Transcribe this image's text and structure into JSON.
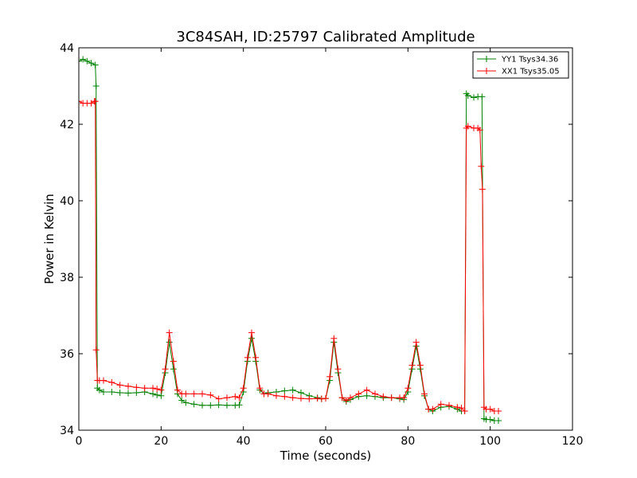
{
  "chart_data": {
    "type": "line",
    "title": "3C84SAH, ID:25797 Calibrated Amplitude",
    "xlabel": "Time (seconds)",
    "ylabel": "Power in Kelvin",
    "xlim": [
      0,
      120
    ],
    "ylim": [
      34,
      44
    ],
    "xticks": [
      0,
      20,
      40,
      60,
      80,
      100,
      120
    ],
    "yticks": [
      34,
      36,
      38,
      40,
      42,
      44
    ],
    "grid": false,
    "legend": "top-right",
    "marker": "+",
    "series": [
      {
        "name": "YY1 Tsys34.36",
        "color": "#008000",
        "x": [
          0,
          1,
          2,
          3,
          4,
          4.2,
          4.5,
          5,
          6,
          8,
          10,
          12,
          14,
          16,
          18,
          19,
          20,
          21,
          22,
          23,
          24,
          25,
          26,
          28,
          30,
          32,
          34,
          36,
          38,
          39,
          40,
          41,
          42,
          43,
          44,
          45,
          46,
          48,
          50,
          52,
          54,
          56,
          58,
          59,
          60,
          61,
          62,
          63,
          64,
          65,
          66,
          68,
          70,
          72,
          74,
          76,
          78,
          79,
          80,
          81,
          82,
          83,
          84,
          85,
          86,
          88,
          90,
          92,
          93,
          93.8,
          94.2,
          94.6,
          96,
          97,
          98,
          98.5,
          99,
          100,
          101,
          102
        ],
        "values": [
          43.65,
          43.7,
          43.65,
          43.6,
          43.55,
          43.0,
          35.1,
          35.05,
          35.0,
          35.0,
          34.98,
          34.97,
          34.98,
          35.0,
          34.95,
          34.92,
          34.9,
          35.5,
          36.3,
          35.6,
          34.95,
          34.78,
          34.72,
          34.68,
          34.65,
          34.65,
          34.66,
          34.65,
          34.65,
          34.66,
          35.0,
          35.8,
          36.4,
          35.8,
          35.05,
          34.95,
          34.98,
          35.0,
          35.03,
          35.05,
          34.98,
          34.9,
          34.85,
          34.82,
          34.83,
          35.3,
          36.3,
          35.5,
          34.85,
          34.75,
          34.8,
          34.88,
          34.9,
          34.88,
          34.85,
          34.85,
          34.82,
          34.8,
          35.0,
          35.6,
          36.2,
          35.6,
          34.9,
          34.55,
          34.5,
          34.6,
          34.62,
          34.55,
          34.5,
          34.5,
          42.8,
          42.75,
          42.7,
          42.72,
          42.72,
          34.3,
          34.28,
          34.28,
          34.25,
          34.25
        ]
      },
      {
        "name": "XX1 Tsys35.05",
        "color": "#ff0000",
        "x": [
          0,
          1,
          2,
          3,
          3.8,
          4.0,
          4.2,
          4.5,
          5,
          6,
          8,
          10,
          12,
          14,
          16,
          18,
          19,
          20,
          21,
          22,
          23,
          24,
          25,
          26,
          28,
          30,
          32,
          34,
          36,
          38,
          39,
          40,
          41,
          42,
          43,
          44,
          45,
          46,
          48,
          50,
          52,
          54,
          56,
          58,
          59,
          60,
          61,
          62,
          63,
          64,
          65,
          66,
          68,
          70,
          72,
          74,
          76,
          78,
          79,
          80,
          81,
          82,
          83,
          84,
          85,
          86,
          88,
          90,
          92,
          93,
          93.8,
          94.2,
          94.6,
          96,
          97,
          97.5,
          97.8,
          98.1,
          98.5,
          99,
          100,
          101,
          102
        ],
        "values": [
          42.6,
          42.55,
          42.55,
          42.55,
          42.6,
          42.6,
          36.1,
          35.3,
          35.3,
          35.3,
          35.25,
          35.18,
          35.15,
          35.12,
          35.1,
          35.1,
          35.08,
          35.05,
          35.6,
          36.55,
          35.8,
          35.05,
          34.95,
          34.95,
          34.95,
          34.95,
          34.92,
          34.82,
          34.85,
          34.88,
          34.85,
          35.1,
          35.9,
          36.55,
          35.9,
          35.1,
          34.95,
          34.95,
          34.9,
          34.88,
          34.85,
          34.83,
          34.82,
          34.83,
          34.82,
          34.83,
          35.4,
          36.4,
          35.6,
          34.85,
          34.78,
          34.85,
          34.95,
          35.05,
          34.95,
          34.88,
          34.85,
          34.85,
          34.85,
          35.1,
          35.7,
          36.3,
          35.7,
          34.95,
          34.55,
          34.55,
          34.68,
          34.65,
          34.6,
          34.58,
          34.5,
          41.9,
          41.95,
          41.9,
          41.9,
          41.85,
          40.9,
          40.3,
          34.6,
          34.55,
          34.55,
          34.5,
          34.5
        ]
      }
    ]
  }
}
